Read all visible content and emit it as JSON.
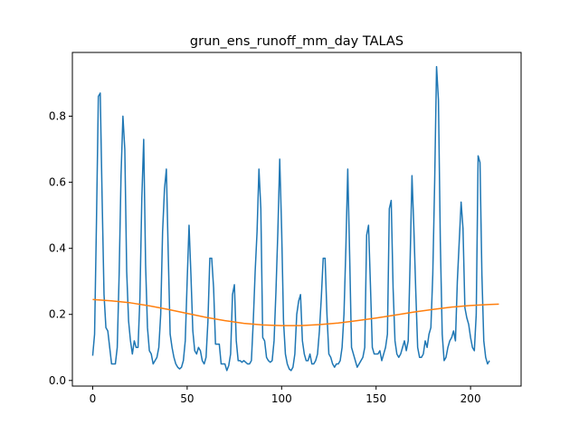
{
  "chart_data": {
    "type": "line",
    "title": "grun_ens_runoff_mm_day TALAS",
    "xlabel": "",
    "ylabel": "",
    "xlim": [
      -10.75,
      226.75
    ],
    "ylim": [
      -0.017,
      0.993
    ],
    "x_ticks": [
      0,
      50,
      100,
      150,
      200
    ],
    "y_ticks": [
      0.0,
      0.2,
      0.4,
      0.6,
      0.8
    ],
    "x_tick_labels": [
      "0",
      "50",
      "100",
      "150",
      "200"
    ],
    "y_tick_labels": [
      "0.0",
      "0.2",
      "0.4",
      "0.6",
      "0.8"
    ],
    "grid": false,
    "legend": "none",
    "series": [
      {
        "color": "#1f77b4",
        "x_start": 0,
        "values": [
          0.075,
          0.14,
          0.48,
          0.86,
          0.87,
          0.55,
          0.26,
          0.16,
          0.15,
          0.1,
          0.05,
          0.05,
          0.05,
          0.1,
          0.32,
          0.62,
          0.8,
          0.7,
          0.33,
          0.18,
          0.12,
          0.08,
          0.12,
          0.1,
          0.1,
          0.25,
          0.55,
          0.73,
          0.35,
          0.16,
          0.09,
          0.08,
          0.05,
          0.06,
          0.07,
          0.1,
          0.2,
          0.45,
          0.58,
          0.64,
          0.38,
          0.14,
          0.1,
          0.07,
          0.05,
          0.04,
          0.035,
          0.04,
          0.06,
          0.12,
          0.3,
          0.47,
          0.32,
          0.15,
          0.09,
          0.08,
          0.1,
          0.09,
          0.06,
          0.05,
          0.07,
          0.18,
          0.37,
          0.37,
          0.28,
          0.11,
          0.11,
          0.11,
          0.05,
          0.05,
          0.05,
          0.03,
          0.045,
          0.08,
          0.26,
          0.29,
          0.12,
          0.06,
          0.06,
          0.055,
          0.06,
          0.055,
          0.05,
          0.05,
          0.06,
          0.18,
          0.33,
          0.45,
          0.64,
          0.52,
          0.13,
          0.12,
          0.07,
          0.06,
          0.055,
          0.06,
          0.12,
          0.27,
          0.45,
          0.67,
          0.46,
          0.18,
          0.08,
          0.05,
          0.035,
          0.03,
          0.04,
          0.08,
          0.2,
          0.24,
          0.26,
          0.12,
          0.08,
          0.06,
          0.06,
          0.08,
          0.05,
          0.05,
          0.06,
          0.08,
          0.15,
          0.25,
          0.37,
          0.37,
          0.2,
          0.08,
          0.07,
          0.05,
          0.04,
          0.05,
          0.05,
          0.06,
          0.1,
          0.2,
          0.4,
          0.64,
          0.38,
          0.1,
          0.08,
          0.06,
          0.04,
          0.05,
          0.06,
          0.07,
          0.1,
          0.44,
          0.47,
          0.29,
          0.1,
          0.08,
          0.08,
          0.08,
          0.09,
          0.06,
          0.08,
          0.1,
          0.14,
          0.52,
          0.545,
          0.28,
          0.12,
          0.08,
          0.07,
          0.08,
          0.1,
          0.12,
          0.09,
          0.12,
          0.36,
          0.62,
          0.46,
          0.27,
          0.1,
          0.07,
          0.07,
          0.08,
          0.12,
          0.1,
          0.14,
          0.16,
          0.32,
          0.6,
          0.95,
          0.85,
          0.42,
          0.14,
          0.06,
          0.07,
          0.1,
          0.12,
          0.13,
          0.15,
          0.12,
          0.3,
          0.42,
          0.54,
          0.46,
          0.22,
          0.19,
          0.17,
          0.13,
          0.1,
          0.09,
          0.2,
          0.68,
          0.66,
          0.32,
          0.12,
          0.07,
          0.05,
          0.06
        ]
      },
      {
        "color": "#ff7f0e",
        "x": [
          0,
          10,
          20,
          30,
          40,
          50,
          60,
          70,
          80,
          90,
          100,
          110,
          120,
          130,
          140,
          150,
          160,
          170,
          180,
          190,
          200,
          210,
          215
        ],
        "values": [
          0.245,
          0.241,
          0.235,
          0.226,
          0.215,
          0.203,
          0.191,
          0.181,
          0.173,
          0.168,
          0.166,
          0.166,
          0.169,
          0.174,
          0.181,
          0.189,
          0.198,
          0.207,
          0.215,
          0.222,
          0.227,
          0.23,
          0.231
        ]
      }
    ]
  }
}
